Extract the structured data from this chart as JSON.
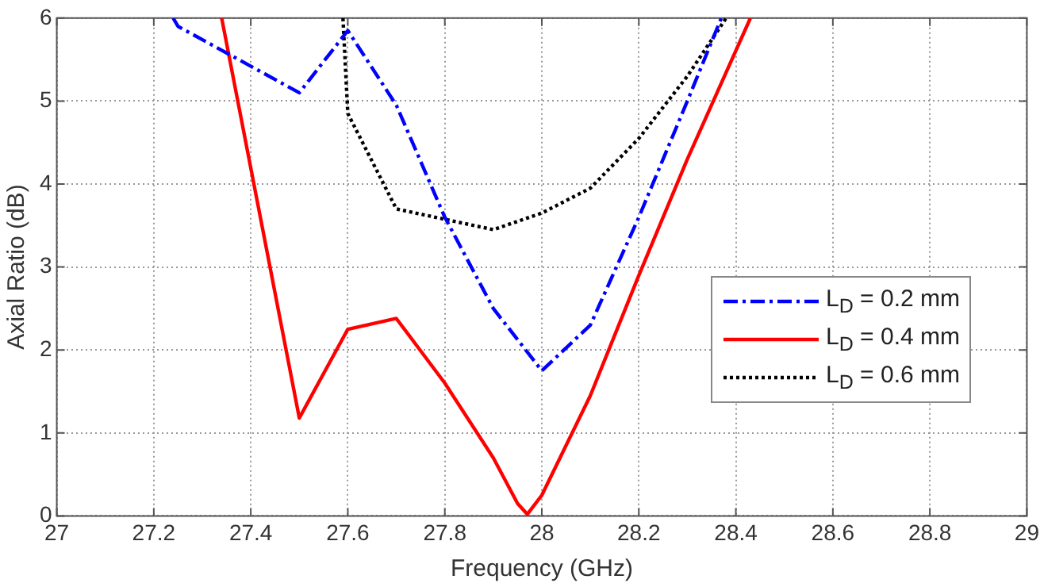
{
  "chart_data": {
    "type": "line",
    "xlabel": "Frequency (GHz)",
    "ylabel": "Axial Ratio (dB)",
    "xlim": [
      27,
      29
    ],
    "xticks": [
      27,
      27.2,
      27.4,
      27.6,
      27.8,
      28,
      28.2,
      28.4,
      28.6,
      28.8,
      29
    ],
    "ylim": [
      0,
      6
    ],
    "yticks": [
      0,
      1,
      2,
      3,
      4,
      5,
      6
    ],
    "grid": true,
    "legend": "right",
    "marker": "none",
    "series": [
      {
        "name": "L$_{D}$ = 0.2 mm",
        "color": "#0000ff",
        "line_style": "dashed",
        "x": [
          27.24,
          27.25,
          27.5,
          27.6,
          27.7,
          27.8,
          27.9,
          28.0,
          28.1,
          28.2,
          28.3,
          28.37
        ],
        "values": [
          6,
          5.9,
          5.1,
          5.85,
          4.95,
          3.6,
          2.5,
          1.75,
          2.3,
          3.6,
          5.0,
          6
        ]
      },
      {
        "name": "L$_{D}$ = 0.4 mm",
        "color": "#ff0000",
        "line_style": "solid",
        "x": [
          27.34,
          27.5,
          27.6,
          27.7,
          27.8,
          27.9,
          27.95,
          27.97,
          28.0,
          28.1,
          28.2,
          28.3,
          28.43
        ],
        "values": [
          6,
          1.18,
          2.25,
          2.38,
          1.6,
          0.7,
          0.15,
          0.02,
          0.25,
          1.45,
          2.9,
          4.3,
          6
        ]
      },
      {
        "name": "L$_{D}$ = 0.6 mm",
        "color": "#000000",
        "line_style": "dotted",
        "x": [
          27.59,
          27.6,
          27.7,
          27.9,
          28.0,
          28.1,
          28.2,
          28.3,
          28.38
        ],
        "values": [
          6,
          4.85,
          3.7,
          3.45,
          3.65,
          3.95,
          4.55,
          5.3,
          6
        ]
      }
    ]
  }
}
